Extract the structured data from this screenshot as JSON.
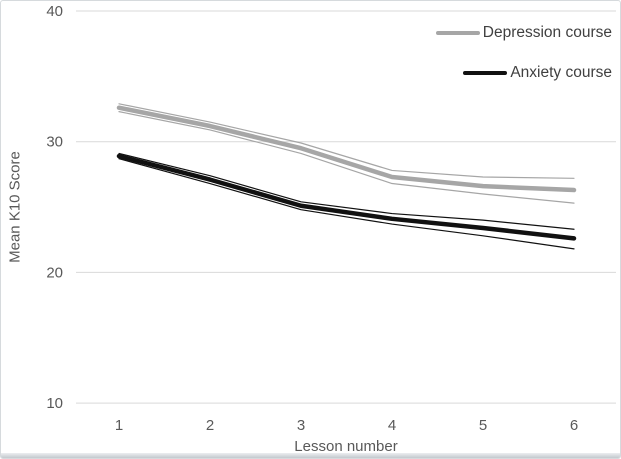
{
  "chart_data": {
    "type": "line",
    "title": "",
    "xlabel": "Lesson number",
    "ylabel": "Mean K10 Score",
    "x": [
      1,
      2,
      3,
      4,
      5,
      6
    ],
    "x_tick_labels": [
      "1",
      "2",
      "3",
      "4",
      "5",
      "6"
    ],
    "y_ticks": [
      40,
      30,
      20,
      10
    ],
    "ylim": [
      10,
      40
    ],
    "grid": "horizontal-only",
    "legend_position": "top-right",
    "series": [
      {
        "name": "Depression course",
        "color": "#a6a6a6",
        "style": "thick-with-thin-ci-lines",
        "values": [
          32.6,
          31.2,
          29.5,
          27.3,
          26.6,
          26.3
        ],
        "ci_upper": [
          32.9,
          31.5,
          29.9,
          27.8,
          27.3,
          27.2
        ],
        "ci_lower": [
          32.3,
          30.9,
          29.1,
          26.8,
          26.0,
          25.3
        ]
      },
      {
        "name": "Anxiety course",
        "color": "#111111",
        "style": "thick-with-thin-ci-lines",
        "values": [
          28.9,
          27.1,
          25.1,
          24.1,
          23.4,
          22.6
        ],
        "ci_upper": [
          29.1,
          27.4,
          25.4,
          24.5,
          24.0,
          23.3
        ],
        "ci_lower": [
          28.7,
          26.8,
          24.8,
          23.7,
          22.8,
          21.8
        ]
      }
    ],
    "colors": {
      "gridline": "#d9d9d9",
      "axis_text": "#595959",
      "legend_text": "#404040",
      "background": "#ffffff"
    }
  }
}
